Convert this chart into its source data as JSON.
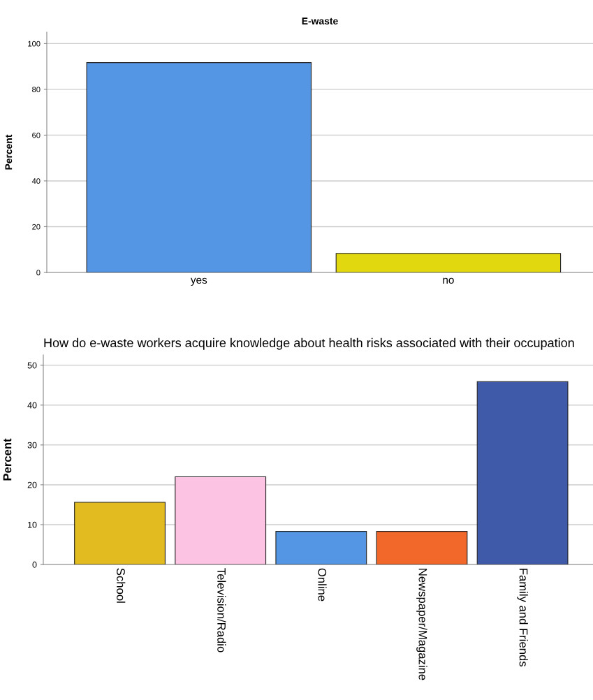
{
  "chart_data": [
    {
      "type": "bar",
      "title": "E-waste",
      "ylabel": "Percent",
      "categories": [
        "yes",
        "no"
      ],
      "values": [
        91.7,
        8.3
      ],
      "colors": [
        "#5596e4",
        "#e1d810"
      ],
      "ylim": [
        0,
        105
      ],
      "yticks": [
        0,
        20,
        40,
        60,
        80,
        100
      ],
      "grid": "y"
    },
    {
      "type": "bar",
      "title": "How do e-waste workers acquire knowledge about health risks associated with their occupation",
      "ylabel": "Percent",
      "categories": [
        "School",
        "Television/Radio",
        "Online",
        "Newspaper/Magazine",
        "Family and Friends"
      ],
      "values": [
        15.6,
        22.0,
        8.3,
        8.3,
        45.9
      ],
      "colors": [
        "#e1bb20",
        "#fdc3e3",
        "#5596e4",
        "#f2682a",
        "#3e5aa8"
      ],
      "ylim": [
        0,
        52.6
      ],
      "yticks": [
        0,
        10,
        20,
        30,
        40,
        50
      ],
      "grid": "y"
    }
  ]
}
